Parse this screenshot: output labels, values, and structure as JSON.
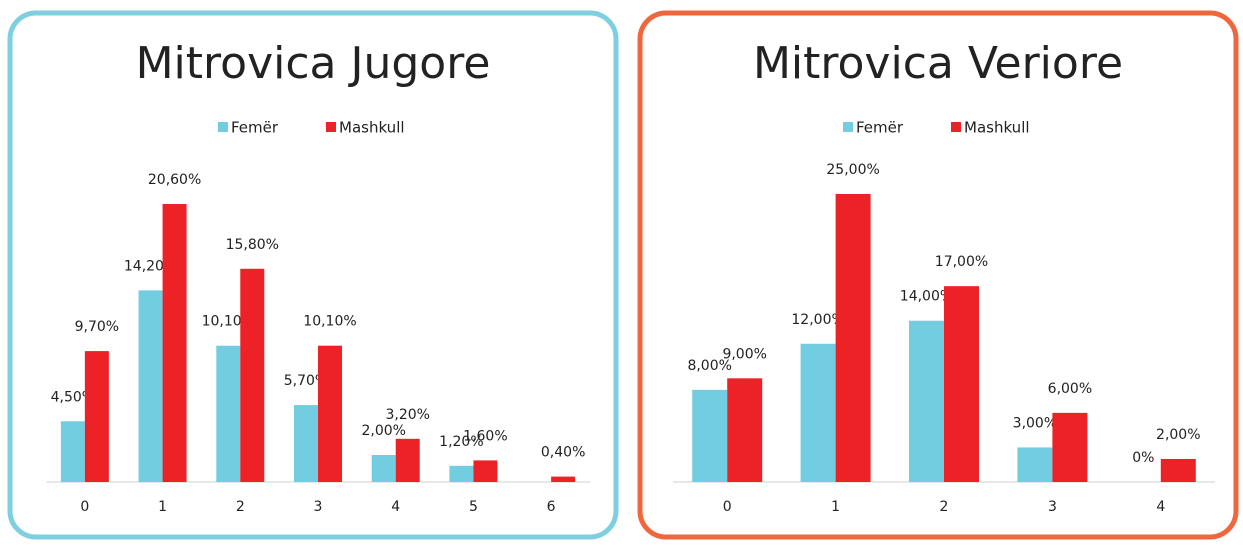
{
  "chart_data": [
    {
      "type": "bar",
      "title": "Mitrovica Jugore",
      "border_color": "#7ecfe0",
      "categories": [
        "0",
        "1",
        "2",
        "3",
        "4",
        "5",
        "6"
      ],
      "series": [
        {
          "name": "Femër",
          "color": "#72cde0",
          "values": [
            4.5,
            14.2,
            10.1,
            5.7,
            2.0,
            1.2,
            null
          ],
          "value_labels": [
            "4,50%",
            "14,20%",
            "10,10%",
            "5,70%",
            "2,00%",
            "1,20%",
            null
          ]
        },
        {
          "name": "Mashkull",
          "color": "#ec2227",
          "values": [
            9.7,
            20.6,
            15.8,
            10.1,
            3.2,
            1.6,
            0.4
          ],
          "value_labels": [
            "9,70%",
            "20,60%",
            "15,80%",
            "10,10%",
            "3,20%",
            "1,60%",
            "0,40%"
          ]
        }
      ]
    },
    {
      "type": "bar",
      "title": "Mitrovica Veriore",
      "border_color": "#f0673d",
      "categories": [
        "0",
        "1",
        "2",
        "3",
        "4"
      ],
      "series": [
        {
          "name": "Femër",
          "color": "#72cde0",
          "values": [
            8,
            12,
            14,
            3,
            0
          ],
          "value_labels": [
            "8,00%",
            "12,00%",
            "14,00%",
            "3,00%",
            "0%"
          ]
        },
        {
          "name": "Mashkull",
          "color": "#ec2227",
          "values": [
            9,
            25,
            17,
            6,
            2
          ],
          "value_labels": [
            "9,00%",
            "25,00%",
            "17,00%",
            "6,00%",
            "2,00%"
          ]
        }
      ]
    }
  ]
}
